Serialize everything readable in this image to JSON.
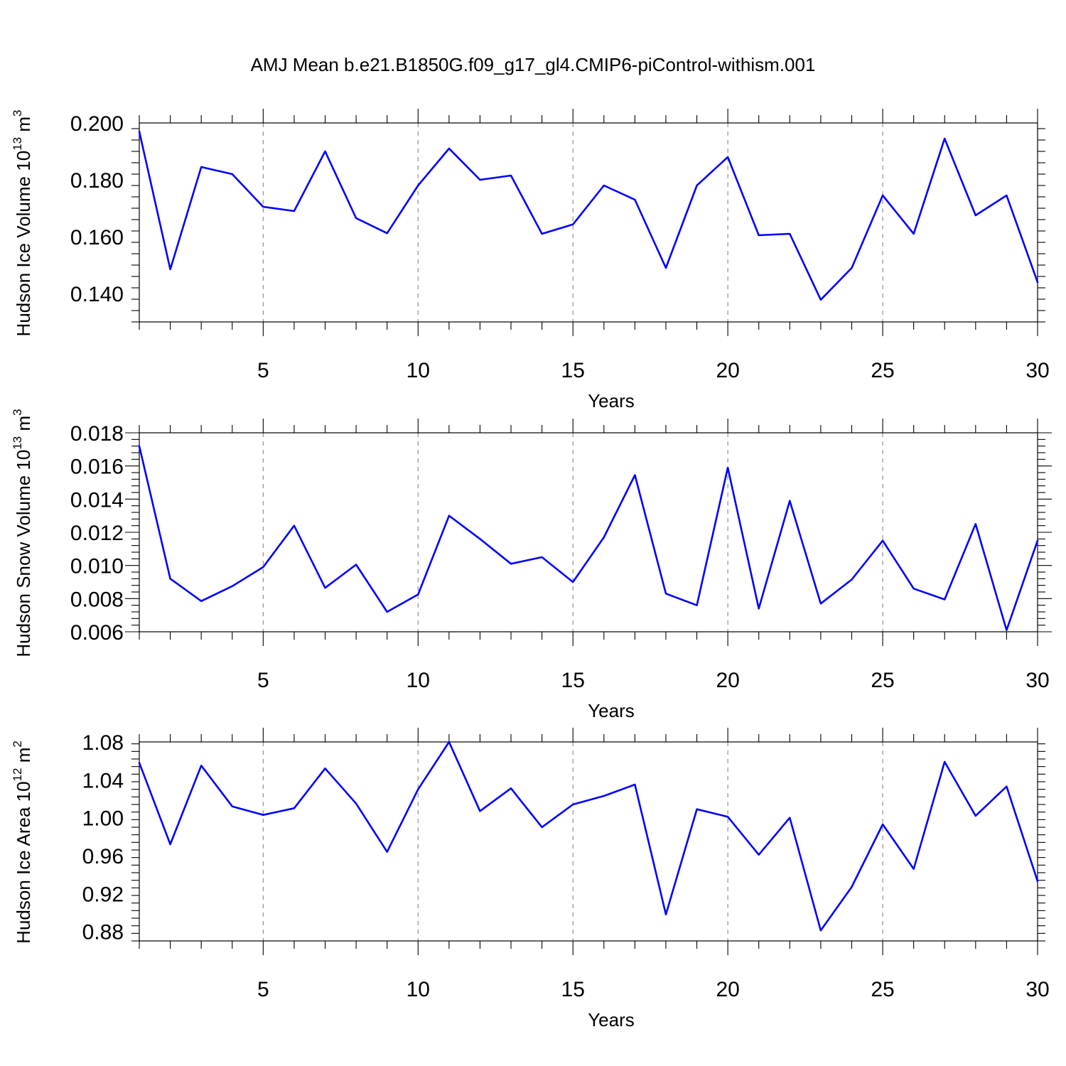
{
  "title": "AMJ Mean b.e21.B1850G.f09_g17_gl4.CMIP6-piControl-withism.001",
  "colors": {
    "line": "#0000ff",
    "grid": "#888888",
    "axes": "#000000"
  },
  "chart_data": [
    {
      "type": "line",
      "xlabel": "Years",
      "ylabel_parts": [
        "Hudson Ice Volume 10",
        "13",
        " m",
        "3"
      ],
      "xlim": [
        1,
        30
      ],
      "ylim": [
        0.13,
        0.2
      ],
      "xticks": [
        5,
        10,
        15,
        20,
        25,
        30
      ],
      "xtick_labels": [
        "5",
        "10",
        "15",
        "20",
        "25",
        "30"
      ],
      "yticks": [
        0.14,
        0.16,
        0.18,
        0.2
      ],
      "ytick_labels": [
        "0.140",
        "0.160",
        "0.180",
        "0.200"
      ],
      "y_minor_step": 0.004,
      "grid": "vertical dashed at major x ticks",
      "x": [
        1,
        2,
        3,
        4,
        5,
        6,
        7,
        8,
        9,
        10,
        11,
        12,
        13,
        14,
        15,
        16,
        17,
        18,
        19,
        20,
        21,
        22,
        23,
        24,
        25,
        26,
        27,
        28,
        29,
        30
      ],
      "series": [
        {
          "values": [
            0.197,
            0.1485,
            0.1845,
            0.182,
            0.1705,
            0.169,
            0.19,
            0.1665,
            0.1612,
            0.178,
            0.191,
            0.18,
            0.1815,
            0.161,
            0.1643,
            0.178,
            0.173,
            0.149,
            0.178,
            0.188,
            0.1605,
            0.161,
            0.1378,
            0.149,
            0.1745,
            0.161,
            0.1945,
            0.1675,
            0.1745,
            0.144
          ]
        }
      ]
    },
    {
      "type": "line",
      "xlabel": "Years",
      "ylabel_parts": [
        "Hudson Snow Volume 10",
        "13",
        " m",
        "3"
      ],
      "xlim": [
        1,
        30
      ],
      "ylim": [
        0.006,
        0.018
      ],
      "xticks": [
        5,
        10,
        15,
        20,
        25,
        30
      ],
      "xtick_labels": [
        "5",
        "10",
        "15",
        "20",
        "25",
        "30"
      ],
      "yticks": [
        0.006,
        0.008,
        0.01,
        0.012,
        0.014,
        0.016,
        0.018
      ],
      "ytick_labels": [
        "0.006",
        "0.008",
        "0.010",
        "0.012",
        "0.014",
        "0.016",
        "0.018"
      ],
      "y_minor_step": 0.0004,
      "grid": "vertical dashed at major x ticks",
      "x": [
        1,
        2,
        3,
        4,
        5,
        6,
        7,
        8,
        9,
        10,
        11,
        12,
        13,
        14,
        15,
        16,
        17,
        18,
        19,
        20,
        21,
        22,
        23,
        24,
        25,
        26,
        27,
        28,
        29,
        30
      ],
      "series": [
        {
          "values": [
            0.0172,
            0.0092,
            0.00785,
            0.00875,
            0.0099,
            0.0124,
            0.00865,
            0.01005,
            0.0072,
            0.00825,
            0.013,
            0.0116,
            0.0101,
            0.0105,
            0.009,
            0.0117,
            0.01545,
            0.0083,
            0.0076,
            0.0159,
            0.0074,
            0.0139,
            0.0077,
            0.00915,
            0.0115,
            0.0086,
            0.00795,
            0.0125,
            0.0061,
            0.0115
          ]
        }
      ]
    },
    {
      "type": "line",
      "xlabel": "Years",
      "ylabel_parts": [
        "Hudson Ice Area 10",
        "12",
        " m",
        "2"
      ],
      "xlim": [
        1,
        30
      ],
      "ylim": [
        0.87,
        1.08
      ],
      "xticks": [
        5,
        10,
        15,
        20,
        25,
        30
      ],
      "xtick_labels": [
        "5",
        "10",
        "15",
        "20",
        "25",
        "30"
      ],
      "yticks": [
        0.88,
        0.92,
        0.96,
        1.0,
        1.04,
        1.08
      ],
      "ytick_labels": [
        "0.88",
        "0.92",
        "0.96",
        "1.00",
        "1.04",
        "1.08"
      ],
      "y_minor_step": 0.008,
      "grid": "vertical dashed at major x ticks",
      "x": [
        1,
        2,
        3,
        4,
        5,
        6,
        7,
        8,
        9,
        10,
        11,
        12,
        13,
        14,
        15,
        16,
        17,
        18,
        19,
        20,
        21,
        22,
        23,
        24,
        25,
        26,
        27,
        28,
        29,
        30
      ],
      "series": [
        {
          "values": [
            1.058,
            0.972,
            1.055,
            1.012,
            1.003,
            1.01,
            1.052,
            1.015,
            0.964,
            1.03,
            1.08,
            1.007,
            1.031,
            0.99,
            1.014,
            1.023,
            1.035,
            0.898,
            1.009,
            1.001,
            0.961,
            1.0,
            0.881,
            0.927,
            0.993,
            0.946,
            1.059,
            1.002,
            1.033,
            0.933
          ]
        }
      ]
    }
  ]
}
